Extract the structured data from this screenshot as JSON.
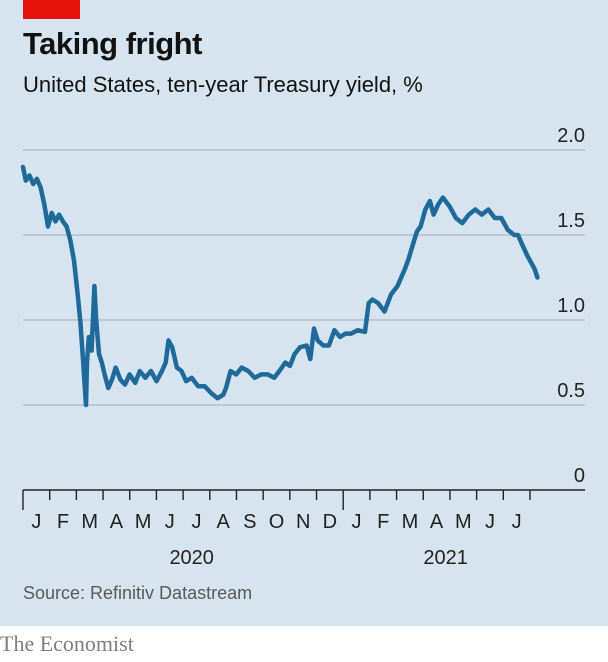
{
  "header": {
    "title": "Taking fright",
    "subtitle": "United States, ten-year Treasury yield, %"
  },
  "footer": {
    "source": "Source: Refinitiv Datastream",
    "brand": "The Economist"
  },
  "colors": {
    "background": "#d5e4ee",
    "line": "#1f6a9b",
    "accent_tag": "#e3120b",
    "grid": "#a7b8c4"
  },
  "chart_data": {
    "type": "line",
    "title": "Taking fright",
    "subtitle": "United States, ten-year Treasury yield, %",
    "xlabel": "",
    "ylabel": "",
    "ylim": [
      0,
      2.0
    ],
    "yticks": [
      0,
      0.5,
      1.0,
      1.5,
      2.0
    ],
    "ytick_labels": [
      "0",
      "0.5",
      "1.0",
      "1.5",
      "2.0"
    ],
    "y_axis_position": "right",
    "grid": true,
    "xlim": [
      "2020-01-01",
      "2021-07-01"
    ],
    "month_labels": [
      "J",
      "F",
      "M",
      "A",
      "M",
      "J",
      "J",
      "A",
      "S",
      "O",
      "N",
      "D",
      "J",
      "F",
      "M",
      "A",
      "M",
      "J",
      "J"
    ],
    "year_labels": [
      {
        "label": "2020",
        "position": "2020-07-01"
      },
      {
        "label": "2021",
        "position": "2021-04-01"
      }
    ],
    "series": [
      {
        "x": [
          "2020-01-01",
          "2020-01-04",
          "2020-01-08",
          "2020-01-12",
          "2020-01-16",
          "2020-01-20",
          "2020-01-24",
          "2020-01-28",
          "2020-02-01",
          "2020-02-05",
          "2020-02-09",
          "2020-02-13",
          "2020-02-17",
          "2020-02-21",
          "2020-02-25",
          "2020-02-29",
          "2020-03-03",
          "2020-03-06",
          "2020-03-09",
          "2020-03-10",
          "2020-03-12",
          "2020-03-15",
          "2020-03-18",
          "2020-03-20",
          "2020-03-23",
          "2020-03-26",
          "2020-03-29",
          "2020-04-02",
          "2020-04-06",
          "2020-04-10",
          "2020-04-15",
          "2020-04-20",
          "2020-04-25",
          "2020-05-01",
          "2020-05-06",
          "2020-05-12",
          "2020-05-18",
          "2020-05-24",
          "2020-05-30",
          "2020-06-03",
          "2020-06-06",
          "2020-06-10",
          "2020-06-15",
          "2020-06-20",
          "2020-06-25",
          "2020-07-01",
          "2020-07-08",
          "2020-07-15",
          "2020-07-22",
          "2020-07-29",
          "2020-08-04",
          "2020-08-07",
          "2020-08-12",
          "2020-08-18",
          "2020-08-24",
          "2020-08-31",
          "2020-09-07",
          "2020-09-14",
          "2020-09-21",
          "2020-09-28",
          "2020-10-05",
          "2020-10-10",
          "2020-10-15",
          "2020-10-20",
          "2020-10-26",
          "2020-11-02",
          "2020-11-06",
          "2020-11-10",
          "2020-11-14",
          "2020-11-20",
          "2020-11-26",
          "2020-12-02",
          "2020-12-08",
          "2020-12-14",
          "2020-12-20",
          "2020-12-27",
          "2021-01-04",
          "2021-01-08",
          "2021-01-12",
          "2021-01-18",
          "2021-01-25",
          "2021-02-01",
          "2021-02-08",
          "2021-02-12",
          "2021-02-16",
          "2021-02-20",
          "2021-02-25",
          "2021-03-01",
          "2021-03-05",
          "2021-03-10",
          "2021-03-15",
          "2021-03-19",
          "2021-03-24",
          "2021-03-29",
          "2021-04-05",
          "2021-04-12",
          "2021-04-19",
          "2021-04-26",
          "2021-05-03",
          "2021-05-10",
          "2021-05-17",
          "2021-05-24",
          "2021-05-31",
          "2021-06-07",
          "2021-06-14",
          "2021-06-18",
          "2021-06-22",
          "2021-06-28",
          "2021-07-06",
          "2021-07-09"
        ],
        "y": [
          1.9,
          1.82,
          1.85,
          1.8,
          1.83,
          1.78,
          1.68,
          1.55,
          1.63,
          1.58,
          1.62,
          1.58,
          1.55,
          1.47,
          1.35,
          1.15,
          0.98,
          0.75,
          0.5,
          0.75,
          0.9,
          0.82,
          1.2,
          1.0,
          0.8,
          0.75,
          0.68,
          0.6,
          0.65,
          0.72,
          0.65,
          0.62,
          0.68,
          0.63,
          0.7,
          0.66,
          0.7,
          0.64,
          0.7,
          0.75,
          0.88,
          0.84,
          0.72,
          0.7,
          0.64,
          0.66,
          0.61,
          0.61,
          0.57,
          0.54,
          0.56,
          0.6,
          0.7,
          0.68,
          0.72,
          0.7,
          0.66,
          0.68,
          0.68,
          0.66,
          0.71,
          0.75,
          0.73,
          0.8,
          0.84,
          0.85,
          0.77,
          0.95,
          0.88,
          0.85,
          0.85,
          0.94,
          0.9,
          0.92,
          0.92,
          0.94,
          0.93,
          1.1,
          1.12,
          1.1,
          1.05,
          1.15,
          1.2,
          1.25,
          1.3,
          1.36,
          1.45,
          1.52,
          1.55,
          1.65,
          1.7,
          1.62,
          1.68,
          1.72,
          1.67,
          1.6,
          1.57,
          1.62,
          1.65,
          1.62,
          1.65,
          1.6,
          1.6,
          1.53,
          1.5,
          1.5,
          1.45,
          1.38,
          1.3,
          1.25
        ]
      }
    ]
  }
}
